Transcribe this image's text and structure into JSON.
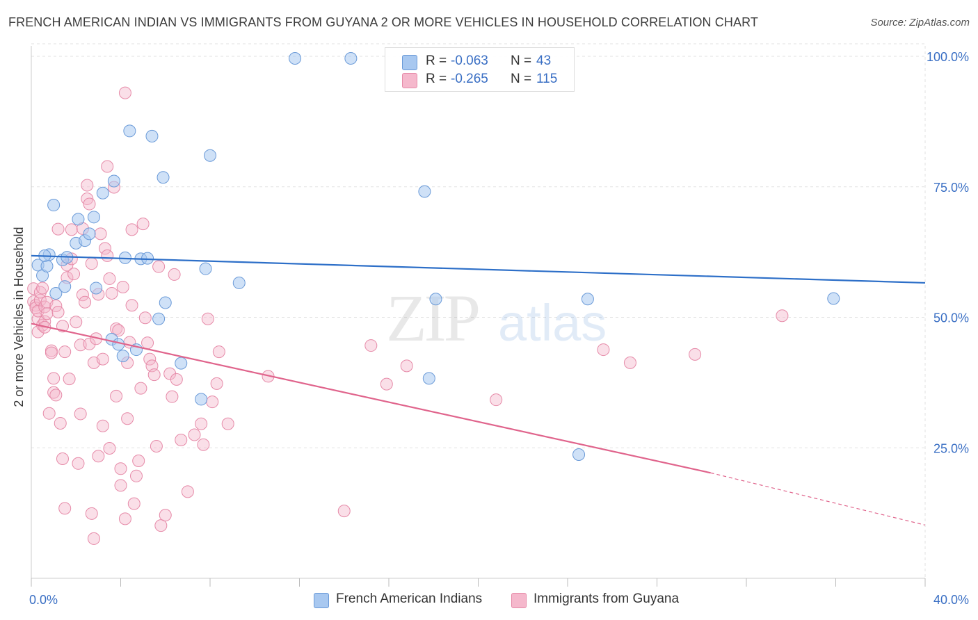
{
  "title": "FRENCH AMERICAN INDIAN VS IMMIGRANTS FROM GUYANA 2 OR MORE VEHICLES IN HOUSEHOLD CORRELATION CHART",
  "source": "Source: ZipAtlas.com",
  "watermark": {
    "zip": "ZIP",
    "atlas": "atlas"
  },
  "legend": {
    "r_label": "R =",
    "n_label": "N =",
    "series": [
      {
        "r": "-0.063",
        "n": "43"
      },
      {
        "r": "-0.265",
        "n": "115"
      }
    ]
  },
  "colors": {
    "blue_fill": "#a8c8f0",
    "blue_stroke": "#6a9ad8",
    "blue_line": "#2d6fc8",
    "pink_fill": "#f5b8cc",
    "pink_stroke": "#e68aa8",
    "pink_line": "#e0648c",
    "grid": "#e2e2e2",
    "axis_text": "#3a6fc4"
  },
  "chart_data": {
    "type": "scatter",
    "title": "FRENCH AMERICAN INDIAN VS IMMIGRANTS FROM GUYANA 2 OR MORE VEHICLES IN HOUSEHOLD CORRELATION CHART",
    "xlabel": "",
    "ylabel": "2 or more Vehicles in Household",
    "xlim": [
      0,
      40
    ],
    "ylim": [
      0,
      102
    ],
    "x_tick_labels": [
      "0.0%",
      "40.0%"
    ],
    "y_ticks": [
      25,
      50,
      75,
      100
    ],
    "y_tick_labels": [
      "25.0%",
      "50.0%",
      "75.0%",
      "100.0%"
    ],
    "grid": true,
    "legend_position": "top-center",
    "series": [
      {
        "name": "French American Indians",
        "color": "#a8c8f0",
        "trend": {
          "x": [
            0,
            40
          ],
          "y": [
            61.8,
            56.6
          ]
        },
        "x": [
          0.3,
          0.5,
          0.7,
          0.8,
          1.0,
          1.1,
          1.4,
          1.5,
          1.6,
          2.0,
          2.1,
          2.4,
          2.6,
          2.8,
          3.2,
          3.6,
          3.9,
          4.2,
          4.4,
          4.7,
          4.9,
          5.2,
          5.4,
          5.7,
          5.9,
          6.0,
          6.7,
          7.6,
          7.8,
          8.0,
          9.3,
          11.8,
          14.3,
          17.6,
          17.8,
          18.1,
          24.5,
          24.9,
          35.9,
          0.6,
          2.9,
          4.1,
          3.7
        ],
        "y": [
          60.0,
          58.0,
          59.8,
          62.0,
          71.5,
          54.6,
          61.0,
          55.9,
          61.5,
          64.2,
          68.8,
          64.7,
          66.0,
          69.2,
          73.8,
          45.8,
          44.8,
          61.4,
          85.7,
          43.8,
          61.2,
          61.3,
          84.7,
          49.7,
          76.8,
          52.8,
          41.2,
          34.3,
          59.3,
          81.0,
          56.6,
          99.6,
          99.6,
          74.1,
          38.3,
          53.5,
          23.7,
          53.5,
          53.6,
          61.8,
          55.6,
          42.6,
          76.1
        ]
      },
      {
        "name": "Immigrants from Guyana",
        "color": "#f5b8cc",
        "trend": {
          "x": [
            0,
            30.4
          ],
          "y": [
            48.8,
            20.2
          ]
        },
        "trend_dashed": {
          "x": [
            30.4,
            40
          ],
          "y": [
            20.2,
            10.2
          ]
        },
        "x": [
          0.1,
          0.1,
          0.2,
          0.2,
          0.3,
          0.3,
          0.3,
          0.4,
          0.4,
          0.5,
          0.5,
          0.6,
          0.6,
          0.6,
          0.7,
          0.7,
          0.8,
          0.9,
          0.9,
          1.0,
          1.0,
          1.1,
          1.1,
          1.2,
          1.2,
          1.3,
          1.4,
          1.4,
          1.5,
          1.5,
          1.6,
          1.6,
          1.7,
          1.8,
          1.8,
          1.9,
          2.0,
          2.1,
          2.2,
          2.2,
          2.3,
          2.3,
          2.4,
          2.5,
          2.5,
          2.6,
          2.6,
          2.7,
          2.7,
          2.8,
          2.8,
          2.9,
          3.0,
          3.0,
          3.1,
          3.2,
          3.2,
          3.3,
          3.4,
          3.4,
          3.5,
          3.5,
          3.6,
          3.7,
          3.8,
          3.8,
          3.9,
          4.0,
          4.0,
          4.1,
          4.2,
          4.2,
          4.3,
          4.3,
          4.4,
          4.5,
          4.5,
          4.6,
          4.7,
          4.8,
          4.9,
          5.0,
          5.1,
          5.2,
          5.3,
          5.4,
          5.5,
          5.6,
          5.7,
          5.8,
          6.0,
          6.2,
          6.3,
          6.4,
          6.5,
          6.7,
          7.0,
          7.3,
          7.6,
          7.7,
          7.9,
          8.1,
          8.3,
          8.4,
          8.8,
          10.6,
          14.0,
          15.2,
          15.9,
          16.8,
          20.8,
          25.6,
          26.8,
          29.7,
          33.6
        ],
        "y": [
          55.5,
          53.0,
          52.3,
          51.8,
          49.7,
          51.2,
          47.2,
          53.3,
          54.8,
          48.5,
          55.6,
          49.2,
          52.0,
          48.1,
          52.9,
          50.7,
          31.6,
          43.6,
          43.2,
          38.3,
          35.6,
          35.1,
          52.2,
          51.0,
          66.9,
          29.7,
          22.9,
          48.3,
          43.4,
          13.4,
          60.0,
          57.6,
          38.2,
          66.8,
          61.2,
          58.3,
          49.1,
          22.0,
          31.5,
          44.7,
          67.0,
          54.3,
          52.9,
          72.7,
          75.3,
          71.7,
          44.9,
          12.4,
          60.3,
          41.3,
          7.6,
          45.9,
          23.4,
          54.4,
          66.0,
          42.0,
          29.2,
          63.2,
          61.8,
          78.9,
          57.4,
          24.9,
          54.6,
          74.9,
          34.9,
          47.8,
          47.5,
          21.0,
          17.8,
          55.8,
          11.4,
          93.0,
          30.6,
          41.3,
          45.2,
          66.8,
          52.3,
          14.3,
          19.6,
          22.5,
          36.4,
          67.9,
          49.9,
          45.1,
          42.0,
          40.7,
          39.0,
          25.3,
          59.7,
          10.1,
          12.1,
          39.2,
          34.8,
          58.2,
          38.1,
          26.5,
          16.6,
          27.5,
          29.6,
          25.6,
          49.7,
          33.8,
          37.3,
          43.4,
          29.6,
          38.7,
          12.9,
          44.6,
          37.2,
          40.7,
          34.2,
          43.8,
          41.3,
          42.9,
          50.3
        ]
      }
    ]
  },
  "bottom_legend": [
    "French American Indians",
    "Immigrants from Guyana"
  ]
}
